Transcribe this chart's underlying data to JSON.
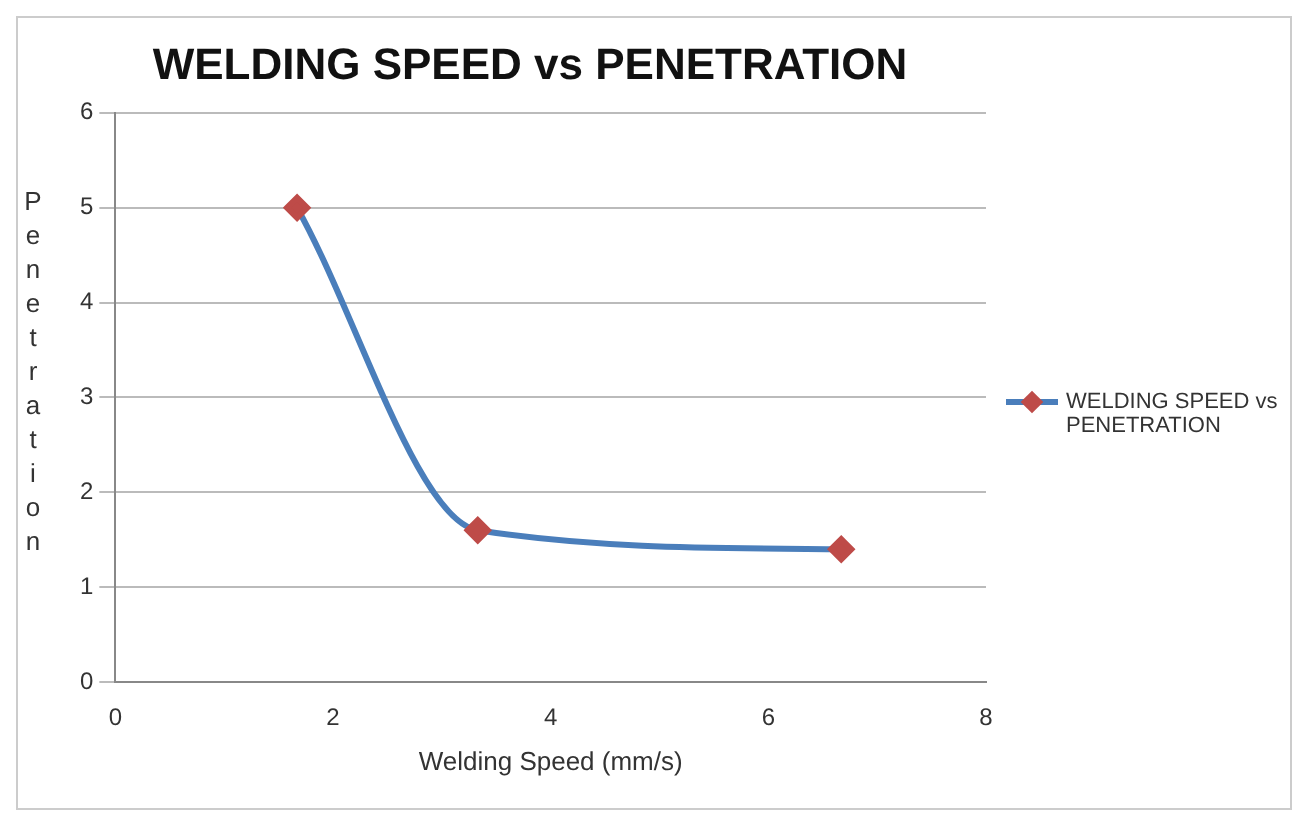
{
  "chart_data": {
    "type": "line",
    "title": "WELDING SPEED vs PENETRATION",
    "xlabel": "Welding Speed (mm/s)",
    "ylabel": "Penetration",
    "x": [
      1.67,
      3.33,
      6.67
    ],
    "series": [
      {
        "name": "WELDING SPEED vs PENETRATION",
        "color": "#4a7ebb",
        "values": [
          5,
          1.6,
          1.4
        ]
      }
    ],
    "xlim": [
      0,
      8
    ],
    "xticks": [
      0,
      2,
      4,
      6,
      8
    ],
    "ylim": [
      0,
      6
    ],
    "yticks": [
      0,
      1,
      2,
      3,
      4,
      5,
      6
    ],
    "grid": "y",
    "legend": "right",
    "marker": "diamond",
    "line_style": "solid"
  }
}
